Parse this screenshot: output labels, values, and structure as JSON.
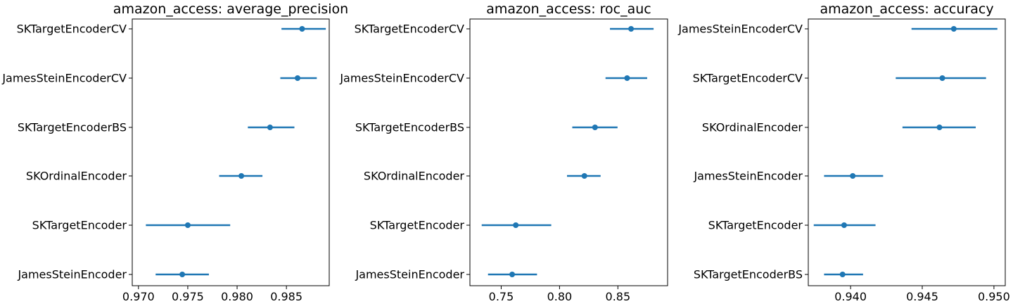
{
  "colors": {
    "series": "#1f77b4",
    "axis": "#000000",
    "background": "#ffffff"
  },
  "chart_data": [
    {
      "type": "scatter",
      "subtype": "point-with-error-bars",
      "title": "amazon_access: average_precision",
      "xlabel": "",
      "ylabel": "",
      "grid": false,
      "xlim": [
        0.96937,
        0.98934
      ],
      "xticks": [
        0.97,
        0.975,
        0.98,
        0.985
      ],
      "xtick_labels": [
        "0.970",
        "0.975",
        "0.980",
        "0.985"
      ],
      "categories": [
        "SKTargetEncoderCV",
        "JamesSteinEncoderCV",
        "SKTargetEncoderBS",
        "SKOrdinalEncoder",
        "SKTargetEncoder",
        "JamesSteinEncoder"
      ],
      "values": [
        0.98659,
        0.98613,
        0.98334,
        0.98043,
        0.975,
        0.97444
      ],
      "error_low": [
        0.9845,
        0.98438,
        0.98109,
        0.97818,
        0.97075,
        0.97174
      ],
      "error_high": [
        0.98899,
        0.98808,
        0.98581,
        0.98257,
        0.9793,
        0.97714
      ]
    },
    {
      "type": "scatter",
      "subtype": "point-with-error-bars",
      "title": "amazon_access: roc_auc",
      "xlabel": "",
      "ylabel": "",
      "grid": false,
      "xlim": [
        0.7232,
        0.8926
      ],
      "xticks": [
        0.75,
        0.8,
        0.85
      ],
      "xtick_labels": [
        "0.75",
        "0.80",
        "0.85"
      ],
      "categories": [
        "SKTargetEncoderCV",
        "JamesSteinEncoderCV",
        "SKTargetEncoderBS",
        "SKOrdinalEncoder",
        "SKTargetEncoder",
        "JamesSteinEncoder"
      ],
      "values": [
        0.8613,
        0.8579,
        0.8304,
        0.8213,
        0.7625,
        0.7594
      ],
      "error_low": [
        0.8432,
        0.8394,
        0.8109,
        0.8064,
        0.7333,
        0.7387
      ],
      "error_high": [
        0.8806,
        0.8751,
        0.8497,
        0.8352,
        0.7929,
        0.7807
      ]
    },
    {
      "type": "scatter",
      "subtype": "point-with-error-bars",
      "title": "amazon_access: accuracy",
      "xlabel": "",
      "ylabel": "",
      "grid": false,
      "xlim": [
        0.93705,
        0.95079
      ],
      "xticks": [
        0.94,
        0.945,
        0.95
      ],
      "xtick_labels": [
        "0.940",
        "0.945",
        "0.950"
      ],
      "categories": [
        "JamesSteinEncoderCV",
        "SKTargetEncoderCV",
        "SKOrdinalEncoder",
        "JamesSteinEncoder",
        "SKTargetEncoder",
        "SKTargetEncoderBS"
      ],
      "values": [
        0.9472,
        0.9464,
        0.9462,
        0.94015,
        0.93955,
        0.93944
      ],
      "error_low": [
        0.94425,
        0.94315,
        0.94362,
        0.93815,
        0.93743,
        0.93815
      ],
      "error_high": [
        0.95024,
        0.94945,
        0.94873,
        0.94227,
        0.94174,
        0.94087
      ]
    }
  ]
}
